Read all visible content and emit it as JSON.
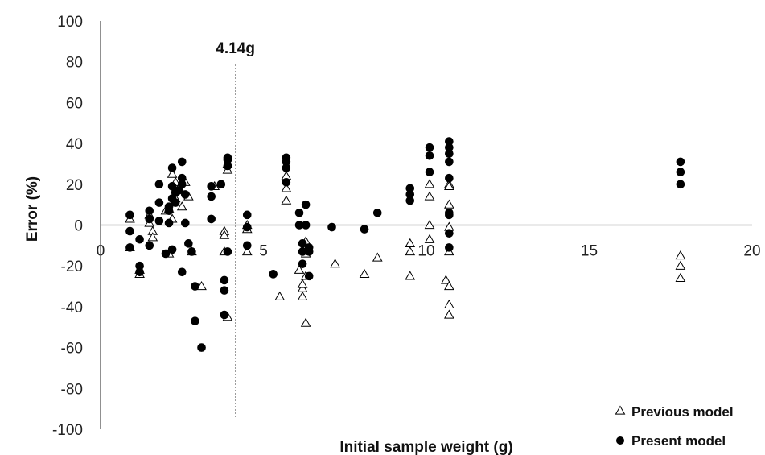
{
  "chart_data": {
    "type": "scatter",
    "xlabel": "Initial sample weight (g)",
    "ylabel": "Error (%)",
    "xlim": [
      0,
      20
    ],
    "ylim": [
      -100,
      100
    ],
    "x_ticks": [
      "0",
      "5",
      "10",
      "15",
      "20"
    ],
    "y_ticks": [
      "100",
      "80",
      "60",
      "40",
      "20",
      "0",
      "-20",
      "-40",
      "-60",
      "-80",
      "-100"
    ],
    "grid": false,
    "legend_position": "bottom-right",
    "annotation": {
      "label": "4.14g",
      "x": 4.14
    },
    "series": [
      {
        "name": "Previous model",
        "marker": "open-triangle",
        "color": "#000000",
        "points": [
          [
            0.9,
            3
          ],
          [
            0.9,
            -11
          ],
          [
            1.2,
            -22
          ],
          [
            1.2,
            -24
          ],
          [
            1.5,
            5
          ],
          [
            1.5,
            1
          ],
          [
            1.6,
            -3
          ],
          [
            1.6,
            -6
          ],
          [
            2.0,
            7
          ],
          [
            2.1,
            -14
          ],
          [
            2.1,
            8
          ],
          [
            2.2,
            3
          ],
          [
            2.2,
            25
          ],
          [
            2.3,
            21
          ],
          [
            2.3,
            13
          ],
          [
            2.4,
            18
          ],
          [
            2.5,
            9
          ],
          [
            2.6,
            21
          ],
          [
            2.7,
            14
          ],
          [
            2.8,
            -13
          ],
          [
            3.1,
            -30
          ],
          [
            3.5,
            19
          ],
          [
            3.8,
            -3
          ],
          [
            3.8,
            -5
          ],
          [
            3.8,
            -13
          ],
          [
            3.9,
            27
          ],
          [
            3.9,
            30
          ],
          [
            3.9,
            -45
          ],
          [
            4.5,
            -13
          ],
          [
            4.5,
            -2
          ],
          [
            4.5,
            0
          ],
          [
            5.5,
            -35
          ],
          [
            5.7,
            12
          ],
          [
            5.7,
            18
          ],
          [
            5.7,
            24
          ],
          [
            6.1,
            -22
          ],
          [
            6.2,
            -31
          ],
          [
            6.2,
            -35
          ],
          [
            6.2,
            -29
          ],
          [
            6.3,
            -25
          ],
          [
            6.3,
            -8
          ],
          [
            6.3,
            -13
          ],
          [
            6.3,
            -11
          ],
          [
            6.3,
            -14
          ],
          [
            6.3,
            -48
          ],
          [
            7.2,
            -19
          ],
          [
            8.1,
            -24
          ],
          [
            8.5,
            -16
          ],
          [
            9.5,
            -9
          ],
          [
            9.5,
            -13
          ],
          [
            9.5,
            -25
          ],
          [
            10.1,
            20
          ],
          [
            10.1,
            14
          ],
          [
            10.1,
            0
          ],
          [
            10.1,
            -7
          ],
          [
            10.6,
            -27
          ],
          [
            10.7,
            20
          ],
          [
            10.7,
            19
          ],
          [
            10.7,
            10
          ],
          [
            10.7,
            -1
          ],
          [
            10.7,
            -13
          ],
          [
            10.7,
            -30
          ],
          [
            10.7,
            -39
          ],
          [
            10.7,
            -44
          ],
          [
            17.8,
            -15
          ],
          [
            17.8,
            -20
          ],
          [
            17.8,
            -26
          ]
        ]
      },
      {
        "name": "Present model",
        "marker": "filled-circle",
        "color": "#000000",
        "points": [
          [
            0.9,
            5
          ],
          [
            0.9,
            -3
          ],
          [
            0.9,
            -11
          ],
          [
            1.2,
            -7
          ],
          [
            1.2,
            -20
          ],
          [
            1.2,
            -23
          ],
          [
            1.5,
            3
          ],
          [
            1.5,
            7
          ],
          [
            1.5,
            -10
          ],
          [
            1.8,
            20
          ],
          [
            1.8,
            11
          ],
          [
            1.8,
            2
          ],
          [
            2.0,
            -14
          ],
          [
            2.1,
            7
          ],
          [
            2.1,
            9
          ],
          [
            2.1,
            1
          ],
          [
            2.2,
            28
          ],
          [
            2.2,
            19
          ],
          [
            2.2,
            13
          ],
          [
            2.2,
            -12
          ],
          [
            2.3,
            16
          ],
          [
            2.3,
            11
          ],
          [
            2.4,
            17
          ],
          [
            2.5,
            31
          ],
          [
            2.5,
            23
          ],
          [
            2.5,
            20
          ],
          [
            2.5,
            -23
          ],
          [
            2.6,
            15
          ],
          [
            2.6,
            1
          ],
          [
            2.7,
            -9
          ],
          [
            2.8,
            -13
          ],
          [
            2.9,
            -30
          ],
          [
            2.9,
            -47
          ],
          [
            3.1,
            -60
          ],
          [
            3.4,
            19
          ],
          [
            3.4,
            14
          ],
          [
            3.4,
            3
          ],
          [
            3.7,
            20
          ],
          [
            3.8,
            -27
          ],
          [
            3.8,
            -32
          ],
          [
            3.8,
            -44
          ],
          [
            3.9,
            33
          ],
          [
            3.9,
            32
          ],
          [
            3.9,
            29
          ],
          [
            3.9,
            -13
          ],
          [
            4.5,
            5
          ],
          [
            4.5,
            -1
          ],
          [
            4.5,
            -10
          ],
          [
            5.3,
            -24
          ],
          [
            5.7,
            33
          ],
          [
            5.7,
            31
          ],
          [
            5.7,
            28
          ],
          [
            5.7,
            21
          ],
          [
            6.1,
            6
          ],
          [
            6.1,
            0
          ],
          [
            6.2,
            -9
          ],
          [
            6.2,
            -13
          ],
          [
            6.2,
            -19
          ],
          [
            6.3,
            10
          ],
          [
            6.3,
            0
          ],
          [
            6.4,
            -11
          ],
          [
            6.4,
            -13
          ],
          [
            6.4,
            -25
          ],
          [
            7.1,
            -1
          ],
          [
            8.1,
            -2
          ],
          [
            8.5,
            6
          ],
          [
            9.5,
            18
          ],
          [
            9.5,
            15
          ],
          [
            9.5,
            12
          ],
          [
            10.1,
            38
          ],
          [
            10.1,
            34
          ],
          [
            10.1,
            26
          ],
          [
            10.7,
            41
          ],
          [
            10.7,
            38
          ],
          [
            10.7,
            35
          ],
          [
            10.7,
            31
          ],
          [
            10.7,
            23
          ],
          [
            10.7,
            6
          ],
          [
            10.7,
            5
          ],
          [
            10.7,
            -4
          ],
          [
            10.7,
            -11
          ],
          [
            17.8,
            31
          ],
          [
            17.8,
            26
          ],
          [
            17.8,
            20
          ]
        ]
      }
    ]
  }
}
